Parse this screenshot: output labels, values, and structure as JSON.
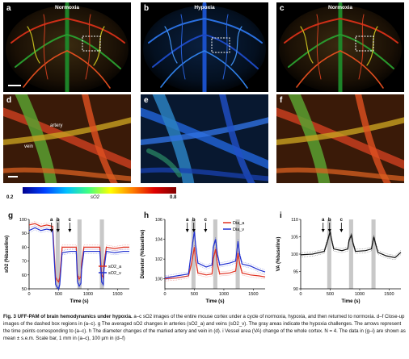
{
  "panels": {
    "a": {
      "letter": "a",
      "title": "Normoxia"
    },
    "b": {
      "letter": "b",
      "title": "Hypoxia"
    },
    "c": {
      "letter": "c",
      "title": "Normoxia"
    },
    "d": {
      "letter": "d",
      "artery_label": "artery",
      "vein_label": "vein"
    },
    "e": {
      "letter": "e"
    },
    "f": {
      "letter": "f"
    }
  },
  "colorbar": {
    "min_label": "0.2",
    "max_label": "0.8",
    "title": "sO2"
  },
  "colors": {
    "artery_red": "#e03020",
    "vein_blue": "#2030d0",
    "va_black": "#111111",
    "hypoxia_gray": "#c8c8c8"
  },
  "chart_data": [
    {
      "panel": "g",
      "type": "line",
      "ylabel": "sO2 (%baseline)",
      "xlabel": "Time (s)",
      "xlim": [
        0,
        1700
      ],
      "ylim": [
        50,
        100
      ],
      "xticks": [
        0,
        500,
        1000,
        1500
      ],
      "yticks": [
        50,
        60,
        70,
        80,
        90,
        100
      ],
      "hypoxia_periods": [
        [
          450,
          520
        ],
        [
          820,
          890
        ],
        [
          1200,
          1270
        ]
      ],
      "arrows": [
        {
          "x": 380,
          "label": "a"
        },
        {
          "x": 490,
          "label": "b"
        },
        {
          "x": 690,
          "label": "c"
        }
      ],
      "legend": [
        "sO2_a",
        "sO2_v"
      ],
      "series": [
        {
          "name": "sO2_a",
          "color": "#e03020",
          "x": [
            0,
            100,
            200,
            300,
            400,
            450,
            480,
            500,
            520,
            560,
            700,
            800,
            820,
            850,
            880,
            890,
            930,
            1100,
            1200,
            1230,
            1260,
            1270,
            1310,
            1450,
            1600,
            1700
          ],
          "y": [
            96,
            97,
            95,
            96,
            95,
            58,
            56,
            55,
            58,
            80,
            80,
            80,
            60,
            57,
            59,
            68,
            80,
            80,
            80,
            60,
            58,
            68,
            80,
            79,
            80,
            80
          ]
        },
        {
          "name": "sO2_v",
          "color": "#2030d0",
          "x": [
            0,
            100,
            200,
            300,
            400,
            450,
            480,
            500,
            520,
            560,
            700,
            800,
            820,
            850,
            880,
            890,
            930,
            1100,
            1200,
            1230,
            1260,
            1270,
            1310,
            1450,
            1600,
            1700
          ],
          "y": [
            92,
            94,
            92,
            93,
            92,
            53,
            51,
            50,
            53,
            76,
            77,
            77,
            55,
            52,
            54,
            64,
            77,
            77,
            77,
            55,
            53,
            64,
            77,
            76,
            77,
            77
          ]
        }
      ]
    },
    {
      "panel": "h",
      "type": "line",
      "ylabel": "Diameter (%baseline)",
      "xlabel": "Time (s)",
      "xlim": [
        0,
        1700
      ],
      "ylim": [
        99,
        106
      ],
      "xticks": [
        0,
        500,
        1000,
        1500
      ],
      "yticks": [
        100,
        102,
        104,
        106
      ],
      "hypoxia_periods": [
        [
          450,
          520
        ],
        [
          820,
          890
        ],
        [
          1200,
          1270
        ]
      ],
      "arrows": [
        {
          "x": 380,
          "label": "a"
        },
        {
          "x": 490,
          "label": "b"
        },
        {
          "x": 690,
          "label": "c"
        }
      ],
      "legend": [
        "Dia_a",
        "Dia_v"
      ],
      "series": [
        {
          "name": "Dia_a",
          "color": "#e03020",
          "x": [
            0,
            200,
            400,
            450,
            500,
            520,
            560,
            700,
            800,
            820,
            860,
            890,
            930,
            1100,
            1200,
            1240,
            1270,
            1310,
            1450,
            1600,
            1700
          ],
          "y": [
            100.0,
            100.1,
            100.3,
            101.5,
            103.2,
            102.0,
            100.6,
            100.4,
            100.5,
            102.0,
            103.0,
            101.5,
            100.5,
            100.6,
            100.8,
            102.6,
            101.5,
            100.6,
            100.4,
            100.3,
            100.2
          ]
        },
        {
          "name": "Dia_v",
          "color": "#2030d0",
          "x": [
            0,
            200,
            400,
            450,
            500,
            520,
            560,
            700,
            800,
            820,
            860,
            890,
            930,
            1100,
            1200,
            1240,
            1270,
            1310,
            1450,
            1600,
            1700
          ],
          "y": [
            100.1,
            100.3,
            100.5,
            102.8,
            104.8,
            103.5,
            101.6,
            101.2,
            101.4,
            103.2,
            104.0,
            102.5,
            101.4,
            101.6,
            101.8,
            103.8,
            102.4,
            101.5,
            101.3,
            100.9,
            100.7
          ]
        }
      ]
    },
    {
      "panel": "i",
      "type": "line",
      "ylabel": "VA (%baseline)",
      "xlabel": "Time (s)",
      "xlim": [
        0,
        1700
      ],
      "ylim": [
        90,
        110
      ],
      "xticks": [
        0,
        500,
        1000,
        1500
      ],
      "yticks": [
        90,
        95,
        100,
        105,
        110
      ],
      "hypoxia_periods": [
        [
          450,
          520
        ],
        [
          820,
          890
        ],
        [
          1200,
          1270
        ]
      ],
      "arrows": [
        {
          "x": 380,
          "label": "a"
        },
        {
          "x": 490,
          "label": "b"
        },
        {
          "x": 690,
          "label": "c"
        }
      ],
      "legend": [],
      "series": [
        {
          "name": "",
          "color": "#111111",
          "x": [
            0,
            200,
            400,
            450,
            500,
            520,
            560,
            700,
            800,
            820,
            860,
            890,
            930,
            1100,
            1200,
            1240,
            1270,
            1310,
            1450,
            1600,
            1700
          ],
          "y": [
            99.8,
            100.0,
            100.8,
            103.5,
            106.5,
            104.5,
            101.5,
            101.0,
            101.5,
            104.0,
            105.5,
            103.0,
            100.8,
            101.0,
            101.5,
            105.0,
            103.0,
            100.5,
            99.5,
            99.0,
            100.5
          ]
        }
      ]
    }
  ],
  "caption": {
    "lead": "Fig. 3 UFF-PAM of brain hemodynamics under hypoxia.",
    "body": " a–c sO2 images of the entire mouse cortex under a cycle of normoxia, hypoxia, and then returned to normoxia. d–f Close-up images of the dashed box regions in (a–c). g The averaged sO2 changes in arteries (sO2_a) and veins (sO2_v). The gray areas indicate the hypoxia challenges. The arrows represent the time points corresponding to (a–c). h The diameter changes of the marked artery and vein in (d). i Vessel area (VA) change of the whole cortex. N = 4. The data in (g–i) are shown as mean ± s.e.m. Scale bar, 1 mm in (a–c), 100 µm in (d–f)"
  }
}
